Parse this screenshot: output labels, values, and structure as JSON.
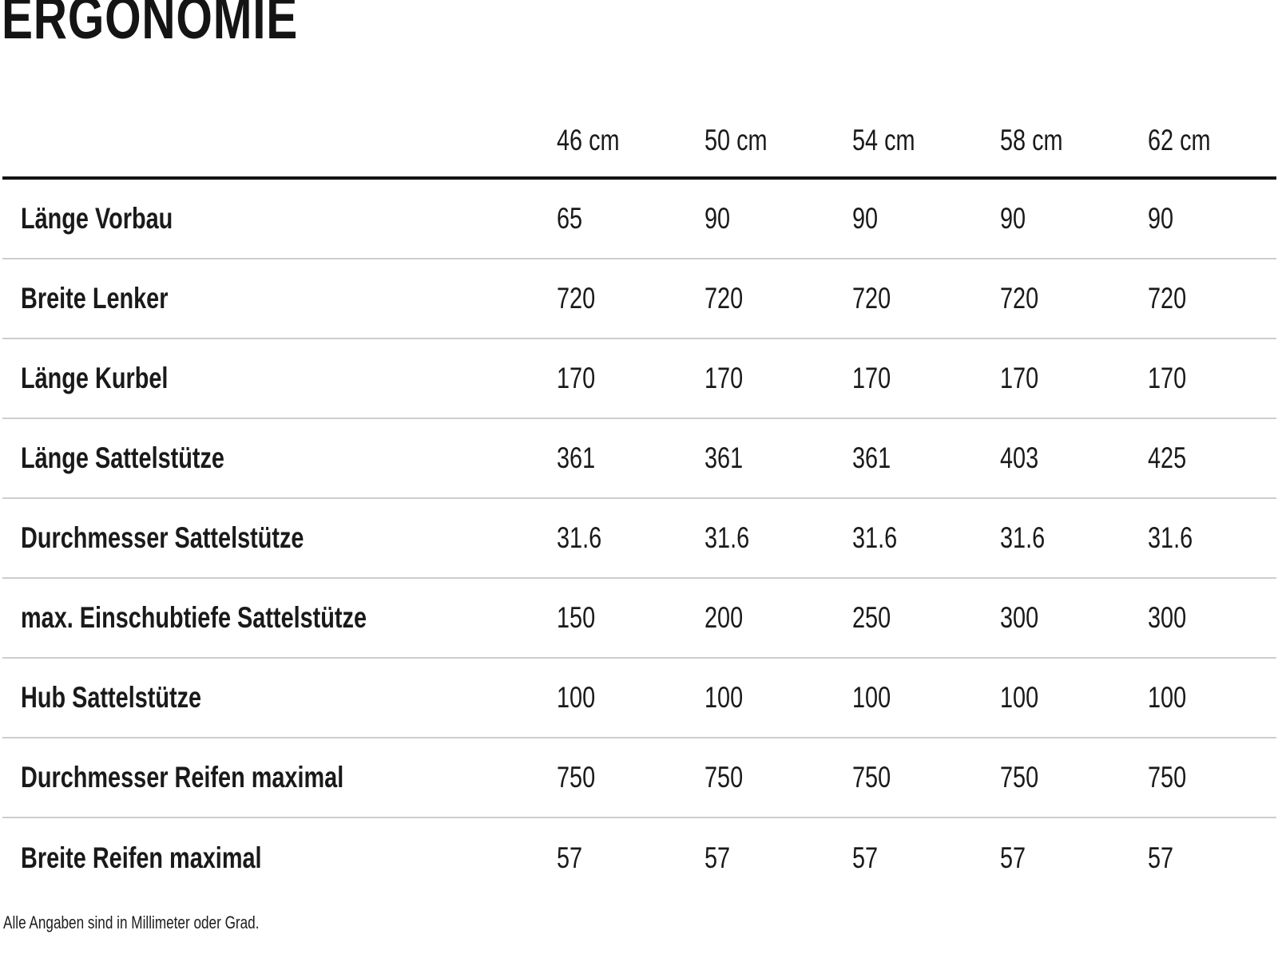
{
  "page": {
    "title": "ERGONOMIE",
    "footnote": "Alle Angaben sind in Millimeter oder Grad."
  },
  "colors": {
    "background": "#ffffff",
    "text": "#1a1a1a",
    "header_rule": "#141414",
    "row_divider": "#cdcdcd"
  },
  "table": {
    "size_headers": [
      "46 cm",
      "50 cm",
      "54 cm",
      "58 cm",
      "62 cm"
    ],
    "rows": [
      {
        "label": "Länge Vorbau",
        "values": [
          "65",
          "90",
          "90",
          "90",
          "90"
        ]
      },
      {
        "label": "Breite Lenker",
        "values": [
          "720",
          "720",
          "720",
          "720",
          "720"
        ]
      },
      {
        "label": "Länge Kurbel",
        "values": [
          "170",
          "170",
          "170",
          "170",
          "170"
        ]
      },
      {
        "label": "Länge Sattelstütze",
        "values": [
          "361",
          "361",
          "361",
          "403",
          "425"
        ]
      },
      {
        "label": "Durchmesser Sattelstütze",
        "values": [
          "31.6",
          "31.6",
          "31.6",
          "31.6",
          "31.6"
        ]
      },
      {
        "label": "max. Einschubtiefe Sattelstütze",
        "values": [
          "150",
          "200",
          "250",
          "300",
          "300"
        ]
      },
      {
        "label": "Hub Sattelstütze",
        "values": [
          "100",
          "100",
          "100",
          "100",
          "100"
        ]
      },
      {
        "label": "Durchmesser Reifen maximal",
        "values": [
          "750",
          "750",
          "750",
          "750",
          "750"
        ]
      },
      {
        "label": "Breite Reifen maximal",
        "values": [
          "57",
          "57",
          "57",
          "57",
          "57"
        ]
      }
    ]
  }
}
